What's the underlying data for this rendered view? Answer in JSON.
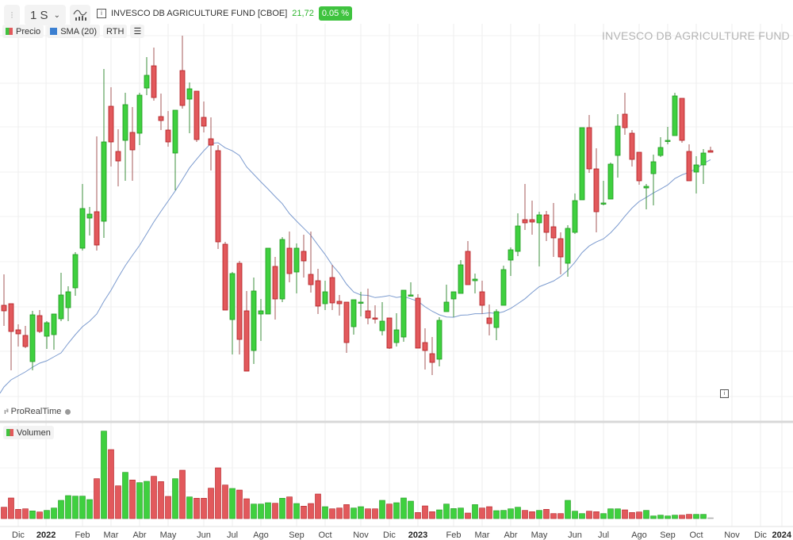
{
  "header": {
    "interval": "1 S",
    "instrument": "INVESCO DB AGRICULTURE FUND [CBOE]",
    "last_price": "21,72",
    "change": "0.05 %",
    "up_color": "#2fb52f"
  },
  "legend": {
    "price": "Precio",
    "sma": "SMA (20)",
    "rth": "RTH",
    "volume": "Volumen"
  },
  "watermark": "INVESCO DB AGRICULTURE FUND",
  "branding": "ProRealTime",
  "colors": {
    "up": "#3fd03f",
    "up_border": "#1f9a1f",
    "down": "#e2595c",
    "down_border": "#b21d22",
    "sma": "#7c9bcf"
  },
  "chart_data": {
    "type": "candlestick",
    "interval": "weekly",
    "ohlc": [
      [
        19.79,
        20.18,
        19.53,
        19.72
      ],
      [
        19.81,
        19.81,
        18.97,
        19.46
      ],
      [
        19.48,
        19.55,
        19.27,
        19.43
      ],
      [
        19.41,
        19.53,
        19.25,
        19.27
      ],
      [
        19.08,
        19.72,
        18.97,
        19.67
      ],
      [
        19.66,
        19.73,
        19.44,
        19.46
      ],
      [
        19.4,
        19.59,
        19.24,
        19.57
      ],
      [
        19.42,
        19.68,
        19.23,
        19.68
      ],
      [
        19.62,
        20.2,
        19.59,
        19.92
      ],
      [
        19.76,
        20.03,
        19.59,
        19.96
      ],
      [
        20.01,
        20.46,
        19.91,
        20.43
      ],
      [
        20.51,
        21.32,
        20.48,
        21.01
      ],
      [
        20.89,
        21.03,
        20.67,
        20.94
      ],
      [
        20.97,
        21.92,
        20.48,
        20.55
      ],
      [
        20.85,
        22.77,
        20.64,
        21.85
      ],
      [
        22.3,
        22.54,
        21.54,
        21.85
      ],
      [
        21.73,
        22.01,
        21.29,
        21.61
      ],
      [
        21.87,
        22.47,
        21.36,
        22.32
      ],
      [
        21.97,
        22.29,
        21.36,
        21.75
      ],
      [
        21.96,
        22.47,
        21.81,
        22.44
      ],
      [
        22.53,
        22.92,
        22.44,
        22.69
      ],
      [
        22.81,
        23.04,
        22.37,
        22.41
      ],
      [
        22.17,
        22.46,
        22.0,
        22.12
      ],
      [
        22.0,
        22.24,
        21.79,
        21.85
      ],
      [
        21.71,
        22.25,
        21.24,
        22.25
      ],
      [
        22.75,
        23.19,
        22.27,
        22.31
      ],
      [
        22.39,
        22.6,
        21.96,
        22.52
      ],
      [
        22.49,
        22.49,
        21.85,
        21.88
      ],
      [
        22.16,
        22.36,
        21.97,
        22.05
      ],
      [
        21.89,
        22.16,
        21.49,
        21.81
      ],
      [
        21.74,
        21.81,
        20.5,
        20.59
      ],
      [
        20.56,
        20.59,
        19.73,
        19.73
      ],
      [
        19.61,
        20.21,
        19.17,
        20.19
      ],
      [
        20.32,
        20.35,
        19.17,
        19.36
      ],
      [
        19.72,
        19.97,
        18.96,
        18.96
      ],
      [
        19.22,
        20.14,
        19.05,
        19.97
      ],
      [
        19.68,
        19.87,
        19.34,
        19.72
      ],
      [
        19.68,
        20.51,
        19.68,
        20.51
      ],
      [
        20.28,
        20.4,
        19.61,
        19.87
      ],
      [
        19.87,
        20.65,
        19.83,
        20.62
      ],
      [
        20.51,
        20.72,
        20.08,
        20.19
      ],
      [
        20.21,
        20.57,
        19.94,
        20.51
      ],
      [
        20.47,
        20.68,
        20.14,
        20.35
      ],
      [
        20.18,
        20.72,
        19.95,
        20.05
      ],
      [
        20.1,
        20.25,
        19.68,
        19.78
      ],
      [
        19.81,
        20.1,
        19.73,
        19.96
      ],
      [
        20.14,
        20.3,
        19.73,
        19.82
      ],
      [
        19.84,
        19.92,
        19.66,
        19.81
      ],
      [
        19.83,
        19.83,
        19.19,
        19.32
      ],
      [
        19.52,
        19.86,
        19.42,
        19.86
      ],
      [
        19.82,
        19.96,
        19.65,
        19.83
      ],
      [
        19.72,
        20.0,
        19.55,
        19.63
      ],
      [
        19.63,
        19.79,
        19.56,
        19.62
      ],
      [
        19.47,
        19.83,
        19.41,
        19.59
      ],
      [
        19.63,
        19.63,
        19.24,
        19.25
      ],
      [
        19.32,
        19.69,
        19.27,
        19.48
      ],
      [
        19.39,
        19.98,
        19.33,
        19.98
      ],
      [
        19.91,
        20.08,
        19.91,
        19.92
      ],
      [
        19.88,
        19.93,
        19.25,
        19.25
      ],
      [
        19.32,
        19.5,
        18.98,
        19.22
      ],
      [
        19.18,
        19.39,
        18.91,
        19.07
      ],
      [
        19.11,
        19.64,
        19.02,
        19.6
      ],
      [
        19.71,
        20.05,
        19.71,
        19.83
      ],
      [
        19.87,
        19.96,
        19.64,
        19.96
      ],
      [
        19.94,
        20.36,
        19.94,
        20.3
      ],
      [
        20.47,
        20.6,
        20.05,
        20.05
      ],
      [
        20.1,
        20.19,
        19.94,
        20.12
      ],
      [
        19.96,
        20.1,
        19.68,
        19.79
      ],
      [
        19.63,
        19.8,
        19.41,
        19.56
      ],
      [
        19.51,
        19.74,
        19.35,
        19.71
      ],
      [
        19.79,
        20.29,
        19.79,
        20.24
      ],
      [
        20.36,
        20.52,
        20.16,
        20.49
      ],
      [
        20.47,
        20.95,
        20.41,
        20.79
      ],
      [
        20.87,
        21.32,
        20.74,
        20.83
      ],
      [
        20.87,
        21.11,
        20.68,
        20.84
      ],
      [
        20.83,
        20.97,
        20.28,
        20.93
      ],
      [
        20.93,
        20.98,
        20.6,
        20.71
      ],
      [
        20.78,
        21.08,
        20.4,
        20.64
      ],
      [
        20.63,
        20.71,
        20.18,
        20.4
      ],
      [
        20.32,
        20.8,
        20.15,
        20.76
      ],
      [
        20.71,
        21.2,
        20.69,
        21.11
      ],
      [
        21.12,
        22.03,
        21.12,
        22.03
      ],
      [
        22.03,
        22.19,
        21.46,
        21.51
      ],
      [
        21.51,
        21.77,
        20.71,
        20.97
      ],
      [
        21.07,
        21.36,
        21.05,
        21.08
      ],
      [
        21.13,
        21.59,
        21.13,
        21.57
      ],
      [
        21.68,
        22.2,
        21.4,
        22.05
      ],
      [
        22.2,
        22.47,
        21.94,
        22.03
      ],
      [
        21.96,
        22.0,
        21.54,
        21.63
      ],
      [
        21.72,
        21.72,
        21.31,
        21.36
      ],
      [
        21.27,
        21.32,
        21.0,
        21.29
      ],
      [
        21.45,
        21.69,
        21.05,
        21.6
      ],
      [
        21.68,
        21.91,
        21.66,
        21.78
      ],
      [
        21.87,
        22.04,
        21.82,
        21.87
      ],
      [
        21.93,
        22.47,
        21.93,
        22.43
      ],
      [
        22.4,
        22.4,
        21.84,
        21.87
      ],
      [
        21.73,
        21.82,
        21.36,
        21.36
      ],
      [
        21.47,
        21.67,
        21.2,
        21.56
      ],
      [
        21.56,
        21.76,
        21.32,
        21.71
      ],
      [
        21.74,
        21.79,
        21.72,
        21.72
      ]
    ],
    "sma_period": 20,
    "sma_warmup": [
      18.76,
      18.85,
      18.9,
      18.95,
      19.01,
      19.06,
      19.09,
      19.14,
      19.19,
      19.31,
      19.42,
      19.52,
      19.59,
      19.68,
      19.84,
      19.98,
      20.14,
      20.29,
      20.42
    ],
    "volume": [
      43,
      78,
      35,
      37,
      29,
      25,
      31,
      40,
      69,
      87,
      85,
      85,
      72,
      151,
      331,
      261,
      124,
      175,
      146,
      136,
      141,
      160,
      140,
      84,
      151,
      183,
      82,
      77,
      77,
      115,
      192,
      127,
      114,
      108,
      75,
      55,
      55,
      60,
      58,
      77,
      82,
      57,
      47,
      57,
      93,
      45,
      37,
      40,
      53,
      40,
      45,
      37,
      37,
      69,
      55,
      60,
      78,
      66,
      23,
      48,
      26,
      33,
      55,
      38,
      40,
      21,
      53,
      40,
      45,
      30,
      31,
      37,
      43,
      31,
      26,
      31,
      35,
      19,
      19,
      69,
      28,
      19,
      28,
      26,
      19,
      37,
      37,
      33,
      23,
      25,
      31,
      10,
      13,
      10,
      13,
      13,
      16,
      16,
      16,
      3
    ],
    "price_range": [
      18.6,
      23.64
    ],
    "x_ticks": [
      {
        "label": "Dic",
        "index": 2,
        "bold": false
      },
      {
        "label": "2022",
        "index": 5.9,
        "bold": true
      },
      {
        "label": "Feb",
        "index": 11,
        "bold": false
      },
      {
        "label": "Mar",
        "index": 15,
        "bold": false
      },
      {
        "label": "Abr",
        "index": 19,
        "bold": false
      },
      {
        "label": "May",
        "index": 23,
        "bold": false
      },
      {
        "label": "Jun",
        "index": 28,
        "bold": false
      },
      {
        "label": "Jul",
        "index": 32,
        "bold": false
      },
      {
        "label": "Ago",
        "index": 36,
        "bold": false
      },
      {
        "label": "Sep",
        "index": 41,
        "bold": false
      },
      {
        "label": "Oct",
        "index": 45,
        "bold": false
      },
      {
        "label": "Nov",
        "index": 50,
        "bold": false
      },
      {
        "label": "Dic",
        "index": 54,
        "bold": false
      },
      {
        "label": "2023",
        "index": 58,
        "bold": true
      },
      {
        "label": "Feb",
        "index": 63,
        "bold": false
      },
      {
        "label": "Mar",
        "index": 67,
        "bold": false
      },
      {
        "label": "Abr",
        "index": 71,
        "bold": false
      },
      {
        "label": "May",
        "index": 75,
        "bold": false
      },
      {
        "label": "Jun",
        "index": 80,
        "bold": false
      },
      {
        "label": "Jul",
        "index": 84,
        "bold": false
      },
      {
        "label": "Ago",
        "index": 89,
        "bold": false
      },
      {
        "label": "Sep",
        "index": 93,
        "bold": false
      },
      {
        "label": "Oct",
        "index": 97,
        "bold": false
      },
      {
        "label": "Nov",
        "index": 102,
        "bold": false
      },
      {
        "label": "Dic",
        "index": 106,
        "bold": false
      },
      {
        "label": "2024",
        "index": 109,
        "bold": true
      }
    ]
  }
}
